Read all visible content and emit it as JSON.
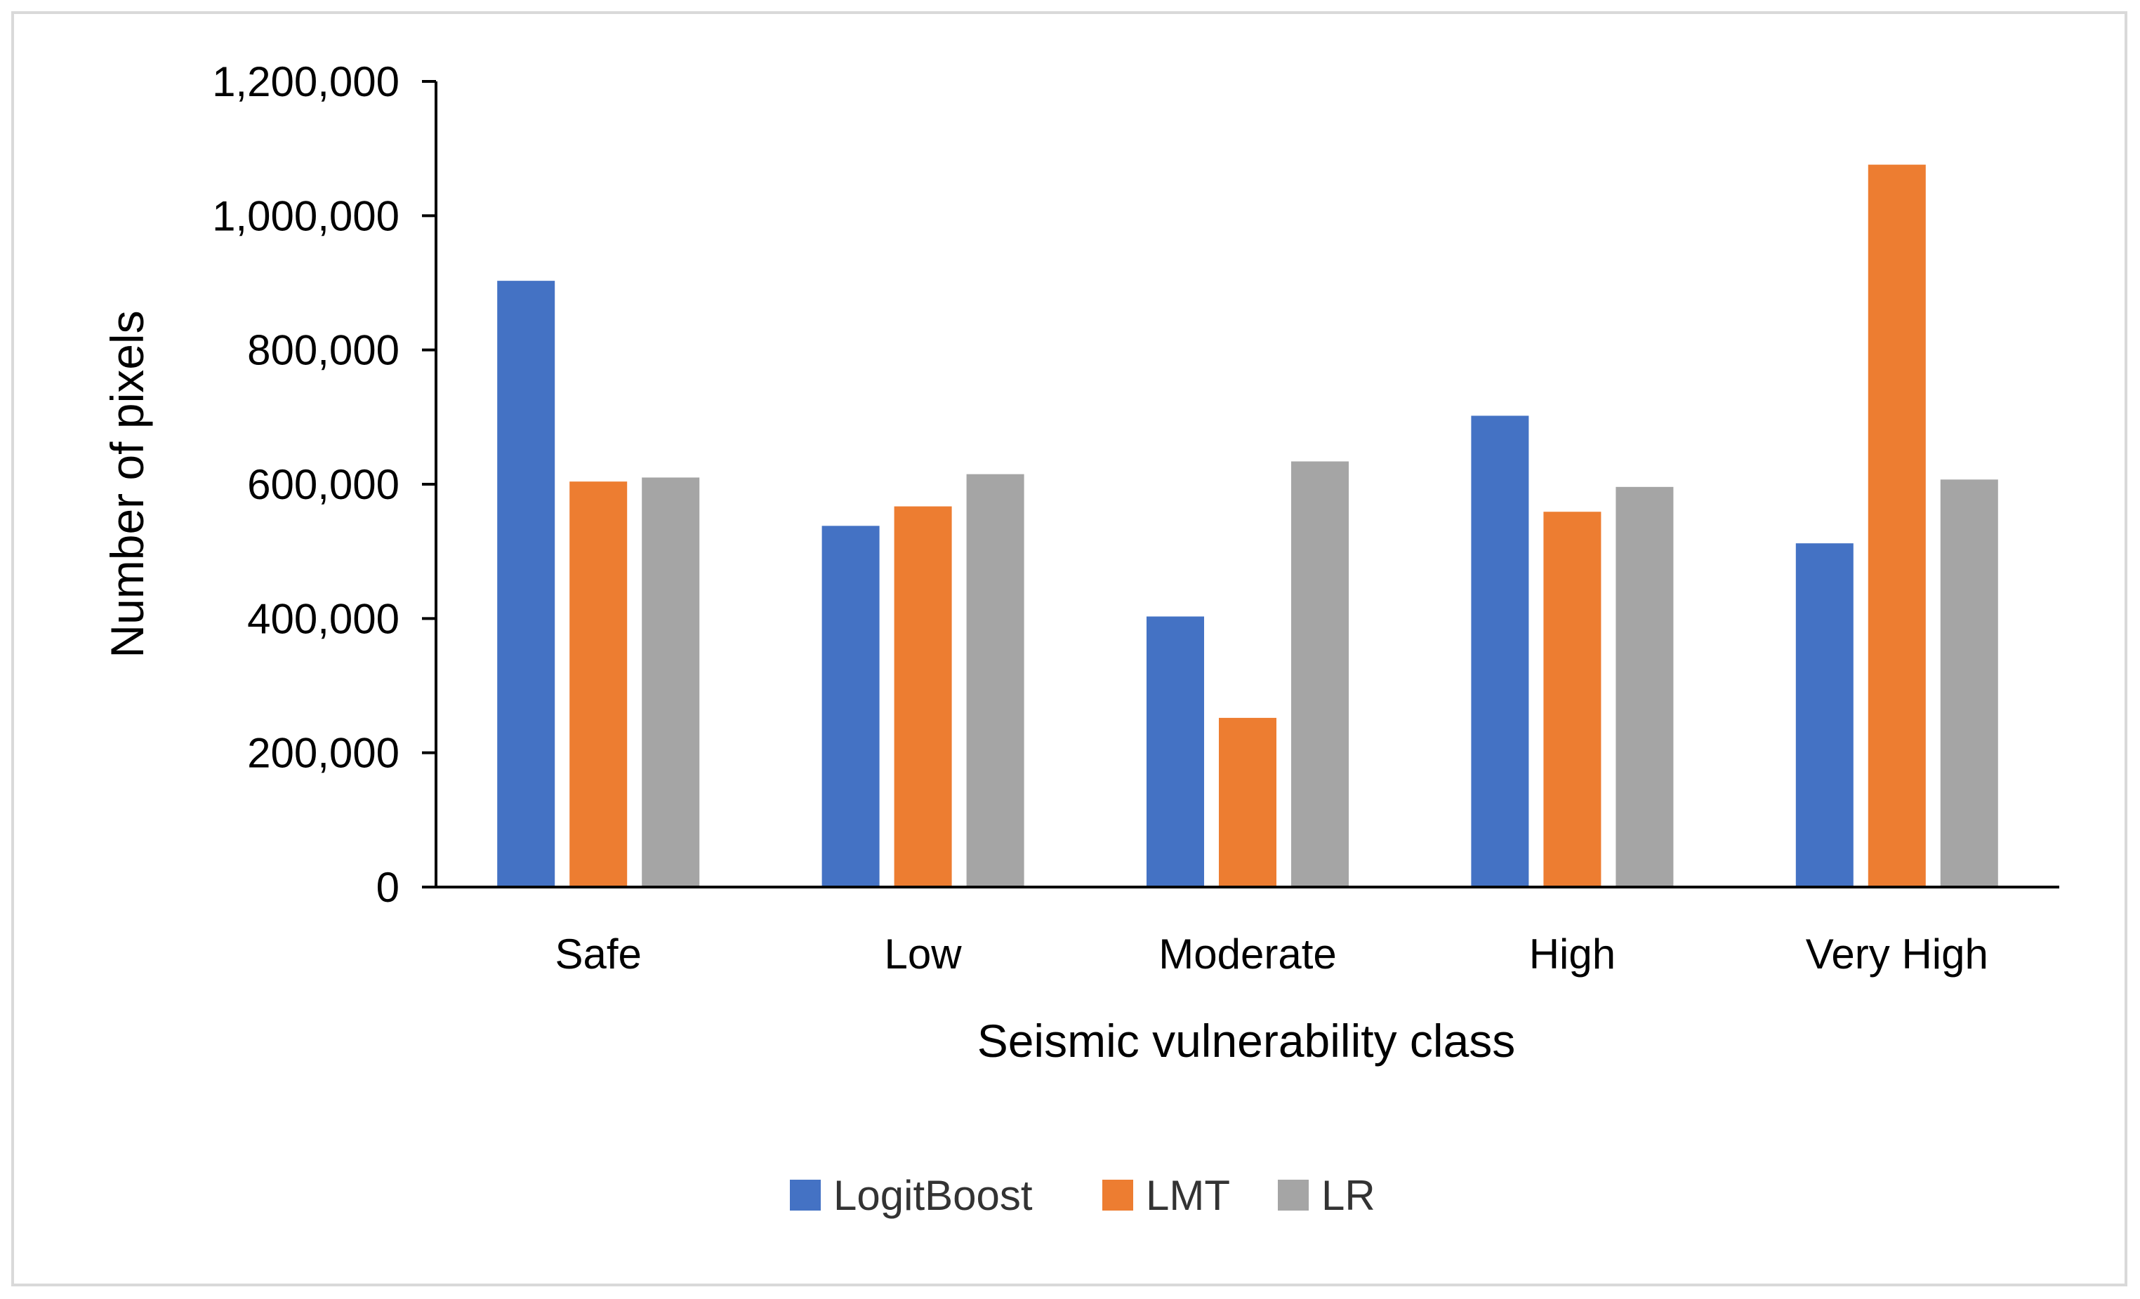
{
  "chart_data": {
    "type": "bar",
    "title": "",
    "xlabel": "Seismic vulnerability class",
    "ylabel": "Number of pixels",
    "categories": [
      "Safe",
      "Low",
      "Moderate",
      "High",
      "Very High"
    ],
    "series": [
      {
        "name": "LogitBoost",
        "color": "#4472c4",
        "values": [
          903000,
          538000,
          403000,
          702000,
          512000
        ]
      },
      {
        "name": "LMT",
        "color": "#ed7d31",
        "values": [
          604000,
          567000,
          252000,
          559000,
          1076000
        ]
      },
      {
        "name": "LR",
        "color": "#a5a5a5",
        "values": [
          610000,
          615000,
          634000,
          596000,
          607000
        ]
      }
    ],
    "ylim": [
      0,
      1200000
    ],
    "yticks": [
      0,
      200000,
      400000,
      600000,
      800000,
      1000000,
      1200000
    ],
    "ytick_labels": [
      "0",
      "200,000",
      "400,000",
      "600,000",
      "800,000",
      "1,000,000",
      "1,200,000"
    ],
    "grid": false,
    "legend_position": "bottom"
  }
}
